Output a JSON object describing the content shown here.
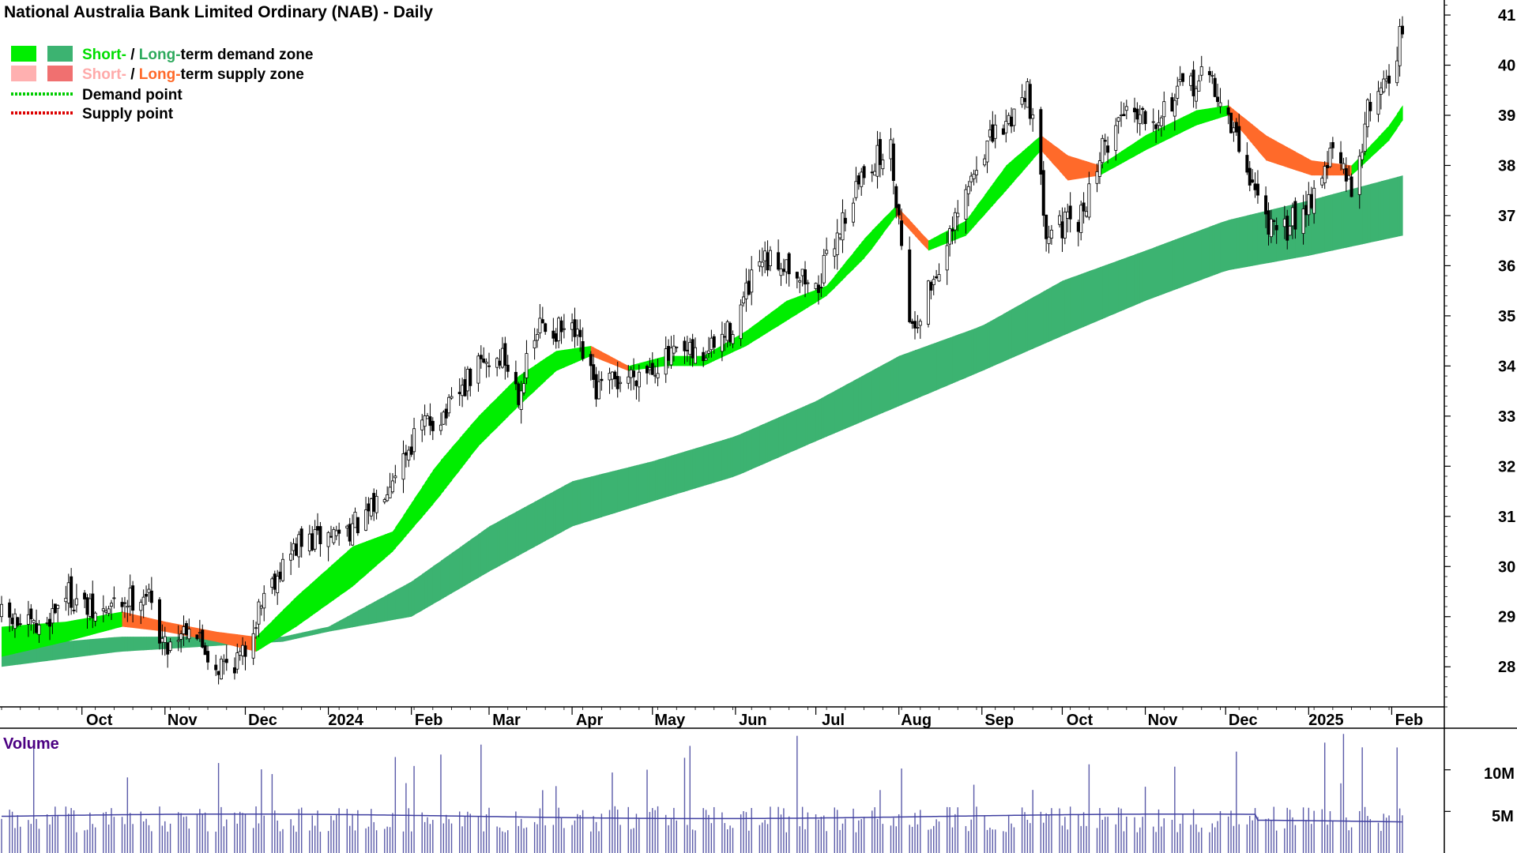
{
  "title": "National Australia Bank Limited Ordinary (NAB) - Daily",
  "legend": {
    "demand_zone": {
      "short": "Short-",
      "sep": " / ",
      "long": "Long-",
      "rest": "term demand zone"
    },
    "supply_zone": {
      "short": "Short-",
      "sep": " / ",
      "long": "Long-",
      "rest": "term supply zone"
    },
    "demand_point": "Demand point",
    "supply_point": "Supply point"
  },
  "colors": {
    "short_demand": "#00ee00",
    "long_demand": "#3cb371",
    "short_supply": "#ffb0b0",
    "long_supply": "#ff6a2a",
    "demand_point": "#00cc00",
    "supply_point": "#dd0000",
    "volume_bar": "#5a5aa8",
    "volume_ma": "#3f3fa0",
    "volume_label": "#4b0082"
  },
  "volume_panel": {
    "label": "Volume",
    "ticks": [
      "10M",
      "5M"
    ]
  },
  "chart_data": {
    "type": "candlestick",
    "title": "National Australia Bank Limited Ordinary (NAB) - Daily",
    "x_tick_labels": [
      "Oct",
      "Nov",
      "Dec",
      "2024",
      "Feb",
      "Mar",
      "Apr",
      "May",
      "Jun",
      "Jul",
      "Aug",
      "Sep",
      "Oct",
      "Nov",
      "Dec",
      "2025",
      "Feb"
    ],
    "y_ticks": [
      28,
      29,
      30,
      31,
      32,
      33,
      34,
      35,
      36,
      37,
      38,
      39,
      40,
      41
    ],
    "ylim": [
      27.2,
      41.3
    ],
    "x_range": [
      "2023-09-01",
      "2025-02-05"
    ],
    "close_series": {
      "name": "",
      "points": [
        [
          "2023-09-01",
          29.0
        ],
        [
          "2023-09-15",
          28.7
        ],
        [
          "2023-09-25",
          29.5
        ],
        [
          "2023-10-06",
          29.0
        ],
        [
          "2023-10-16",
          29.3
        ],
        [
          "2023-10-25",
          29.5
        ],
        [
          "2023-11-01",
          28.4
        ],
        [
          "2023-11-10",
          28.9
        ],
        [
          "2023-11-20",
          28.0
        ],
        [
          "2023-11-30",
          28.2
        ],
        [
          "2023-12-08",
          29.5
        ],
        [
          "2023-12-20",
          30.4
        ],
        [
          "2024-01-05",
          30.7
        ],
        [
          "2024-01-15",
          30.9
        ],
        [
          "2024-01-25",
          31.9
        ],
        [
          "2024-02-05",
          32.8
        ],
        [
          "2024-02-15",
          33.1
        ],
        [
          "2024-02-26",
          34.0
        ],
        [
          "2024-03-06",
          34.2
        ],
        [
          "2024-03-12",
          33.5
        ],
        [
          "2024-03-20",
          34.8
        ],
        [
          "2024-04-02",
          34.6
        ],
        [
          "2024-04-10",
          33.5
        ],
        [
          "2024-04-18",
          33.7
        ],
        [
          "2024-04-30",
          34.0
        ],
        [
          "2024-05-10",
          34.2
        ],
        [
          "2024-05-20",
          34.2
        ],
        [
          "2024-05-30",
          34.7
        ],
        [
          "2024-06-10",
          36.0
        ],
        [
          "2024-06-20",
          36.1
        ],
        [
          "2024-07-01",
          35.5
        ],
        [
          "2024-07-10",
          36.8
        ],
        [
          "2024-07-20",
          38.0
        ],
        [
          "2024-07-29",
          38.3
        ],
        [
          "2024-08-06",
          34.7
        ],
        [
          "2024-08-12",
          35.5
        ],
        [
          "2024-08-20",
          36.5
        ],
        [
          "2024-09-01",
          38.3
        ],
        [
          "2024-09-10",
          38.8
        ],
        [
          "2024-09-18",
          39.6
        ],
        [
          "2024-09-25",
          36.8
        ],
        [
          "2024-10-07",
          36.8
        ],
        [
          "2024-10-15",
          38.2
        ],
        [
          "2024-10-25",
          39.2
        ],
        [
          "2024-11-05",
          39.0
        ],
        [
          "2024-11-15",
          39.5
        ],
        [
          "2024-11-25",
          39.8
        ],
        [
          "2024-12-05",
          38.5
        ],
        [
          "2024-12-12",
          37.5
        ],
        [
          "2024-12-20",
          36.5
        ],
        [
          "2025-01-02",
          37.4
        ],
        [
          "2025-01-10",
          38.3
        ],
        [
          "2025-01-17",
          37.5
        ],
        [
          "2025-01-24",
          39.3
        ],
        [
          "2025-01-31",
          39.8
        ],
        [
          "2025-02-05",
          40.7
        ]
      ]
    },
    "short_term_zone": {
      "points": [
        [
          "2023-09-01",
          28.2,
          28.8
        ],
        [
          "2023-09-25",
          28.5,
          28.9
        ],
        [
          "2023-10-16",
          28.8,
          29.1
        ],
        [
          "2023-11-01",
          28.7,
          28.9
        ],
        [
          "2023-11-20",
          28.5,
          28.7
        ],
        [
          "2023-12-05",
          28.3,
          28.6
        ],
        [
          "2023-12-20",
          28.8,
          29.4
        ],
        [
          "2024-01-10",
          29.6,
          30.4
        ],
        [
          "2024-01-25",
          30.3,
          30.7
        ],
        [
          "2024-02-10",
          31.3,
          32.0
        ],
        [
          "2024-02-26",
          32.4,
          33.0
        ],
        [
          "2024-03-12",
          33.2,
          33.8
        ],
        [
          "2024-03-26",
          33.9,
          34.3
        ],
        [
          "2024-04-08",
          34.2,
          34.4
        ],
        [
          "2024-04-22",
          33.9,
          34.0
        ],
        [
          "2024-05-06",
          34.0,
          34.2
        ],
        [
          "2024-05-20",
          34.0,
          34.2
        ],
        [
          "2024-06-05",
          34.4,
          34.7
        ],
        [
          "2024-06-20",
          34.9,
          35.3
        ],
        [
          "2024-07-05",
          35.4,
          35.6
        ],
        [
          "2024-07-20",
          36.2,
          36.6
        ],
        [
          "2024-07-31",
          37.0,
          37.2
        ],
        [
          "2024-08-12",
          36.3,
          36.5
        ],
        [
          "2024-08-26",
          36.6,
          36.9
        ],
        [
          "2024-09-10",
          37.5,
          38.0
        ],
        [
          "2024-09-23",
          38.3,
          38.6
        ],
        [
          "2024-10-03",
          37.7,
          38.2
        ],
        [
          "2024-10-15",
          37.8,
          38.0
        ],
        [
          "2024-11-01",
          38.3,
          38.6
        ],
        [
          "2024-11-20",
          38.8,
          39.1
        ],
        [
          "2024-12-02",
          39.0,
          39.2
        ],
        [
          "2024-12-16",
          38.1,
          38.6
        ],
        [
          "2025-01-02",
          37.8,
          38.1
        ],
        [
          "2025-01-17",
          37.8,
          38.0
        ],
        [
          "2025-01-31",
          38.5,
          38.8
        ],
        [
          "2025-02-05",
          38.9,
          39.2
        ]
      ]
    },
    "long_term_zone": {
      "points": [
        [
          "2023-09-01",
          28.0,
          28.4
        ],
        [
          "2023-10-15",
          28.3,
          28.6
        ],
        [
          "2023-11-15",
          28.4,
          28.6
        ],
        [
          "2023-12-15",
          28.5,
          28.6
        ],
        [
          "2024-01-01",
          28.7,
          28.8
        ],
        [
          "2024-02-01",
          29.0,
          29.7
        ],
        [
          "2024-03-01",
          29.9,
          30.8
        ],
        [
          "2024-04-01",
          30.8,
          31.7
        ],
        [
          "2024-05-01",
          31.3,
          32.1
        ],
        [
          "2024-06-01",
          31.8,
          32.6
        ],
        [
          "2024-07-01",
          32.5,
          33.3
        ],
        [
          "2024-08-01",
          33.2,
          34.2
        ],
        [
          "2024-09-01",
          33.9,
          34.8
        ],
        [
          "2024-10-01",
          34.6,
          35.7
        ],
        [
          "2024-11-01",
          35.3,
          36.3
        ],
        [
          "2024-12-01",
          35.9,
          36.9
        ],
        [
          "2025-01-01",
          36.2,
          37.3
        ],
        [
          "2025-02-05",
          36.6,
          37.8
        ]
      ]
    },
    "volume": {
      "ticks_millions": [
        5,
        10
      ],
      "ylim_millions": [
        0,
        15
      ],
      "average_millions": 4.5
    }
  }
}
